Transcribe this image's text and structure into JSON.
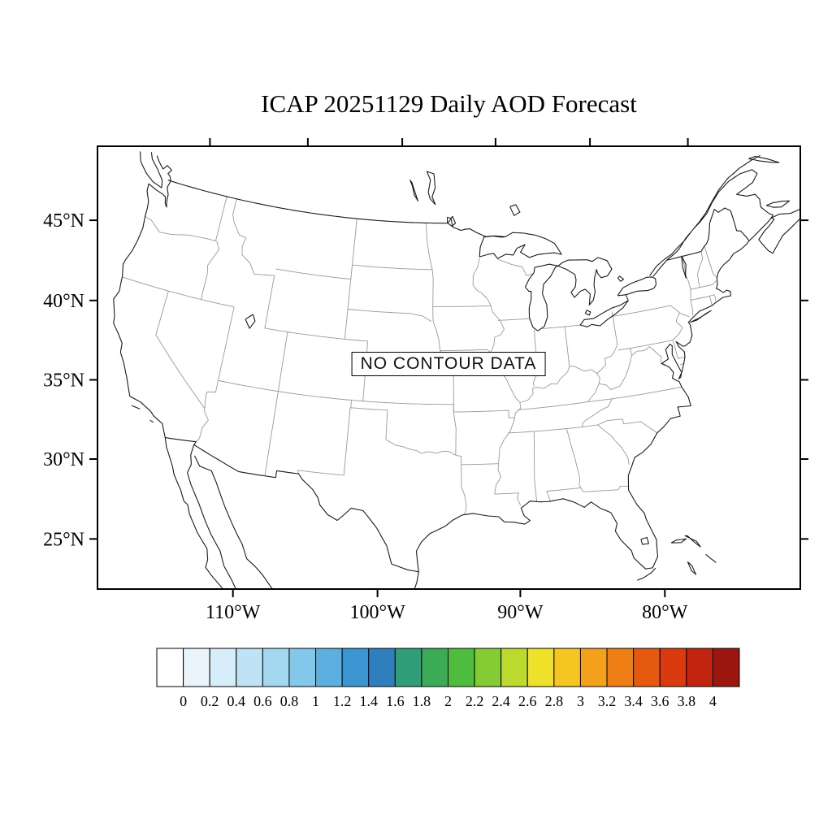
{
  "title": "ICAP 20251129 Daily AOD Forecast",
  "map": {
    "no_data_label": "NO CONTOUR DATA",
    "lat_ticks": [
      {
        "value": 45,
        "label": "45°N"
      },
      {
        "value": 40,
        "label": "40°N"
      },
      {
        "value": 35,
        "label": "35°N"
      },
      {
        "value": 30,
        "label": "30°N"
      },
      {
        "value": 25,
        "label": "25°N"
      }
    ],
    "lon_ticks_labeled": [
      {
        "value": -110,
        "label": "110°W"
      },
      {
        "value": -100,
        "label": "100°W"
      },
      {
        "value": -90,
        "label": "90°W"
      },
      {
        "value": -80,
        "label": "80°W"
      }
    ],
    "lon_ticks_top": [
      -120,
      -110,
      -100,
      -90,
      -80,
      -70
    ],
    "coast_color": "#1a1a1a",
    "state_border_color": "#999999"
  },
  "colorbar": {
    "labels": [
      "0",
      "0.2",
      "0.4",
      "0.6",
      "0.8",
      "1",
      "1.2",
      "1.4",
      "1.6",
      "1.8",
      "2",
      "2.2",
      "2.4",
      "2.6",
      "2.8",
      "3",
      "3.2",
      "3.4",
      "3.6",
      "3.8",
      "4"
    ],
    "colors": [
      "#ffffff",
      "#eaf5fb",
      "#d7edf9",
      "#bfe3f5",
      "#a3d7f0",
      "#83c7ea",
      "#5cb0e0",
      "#3a95d1",
      "#2f7fbe",
      "#2f9e78",
      "#3bab55",
      "#4fbc3f",
      "#85cb33",
      "#bcd92d",
      "#efe129",
      "#f5c521",
      "#f3a01a",
      "#ee7d13",
      "#e65a10",
      "#d93a0e",
      "#c1250f",
      "#9b1710"
    ]
  }
}
